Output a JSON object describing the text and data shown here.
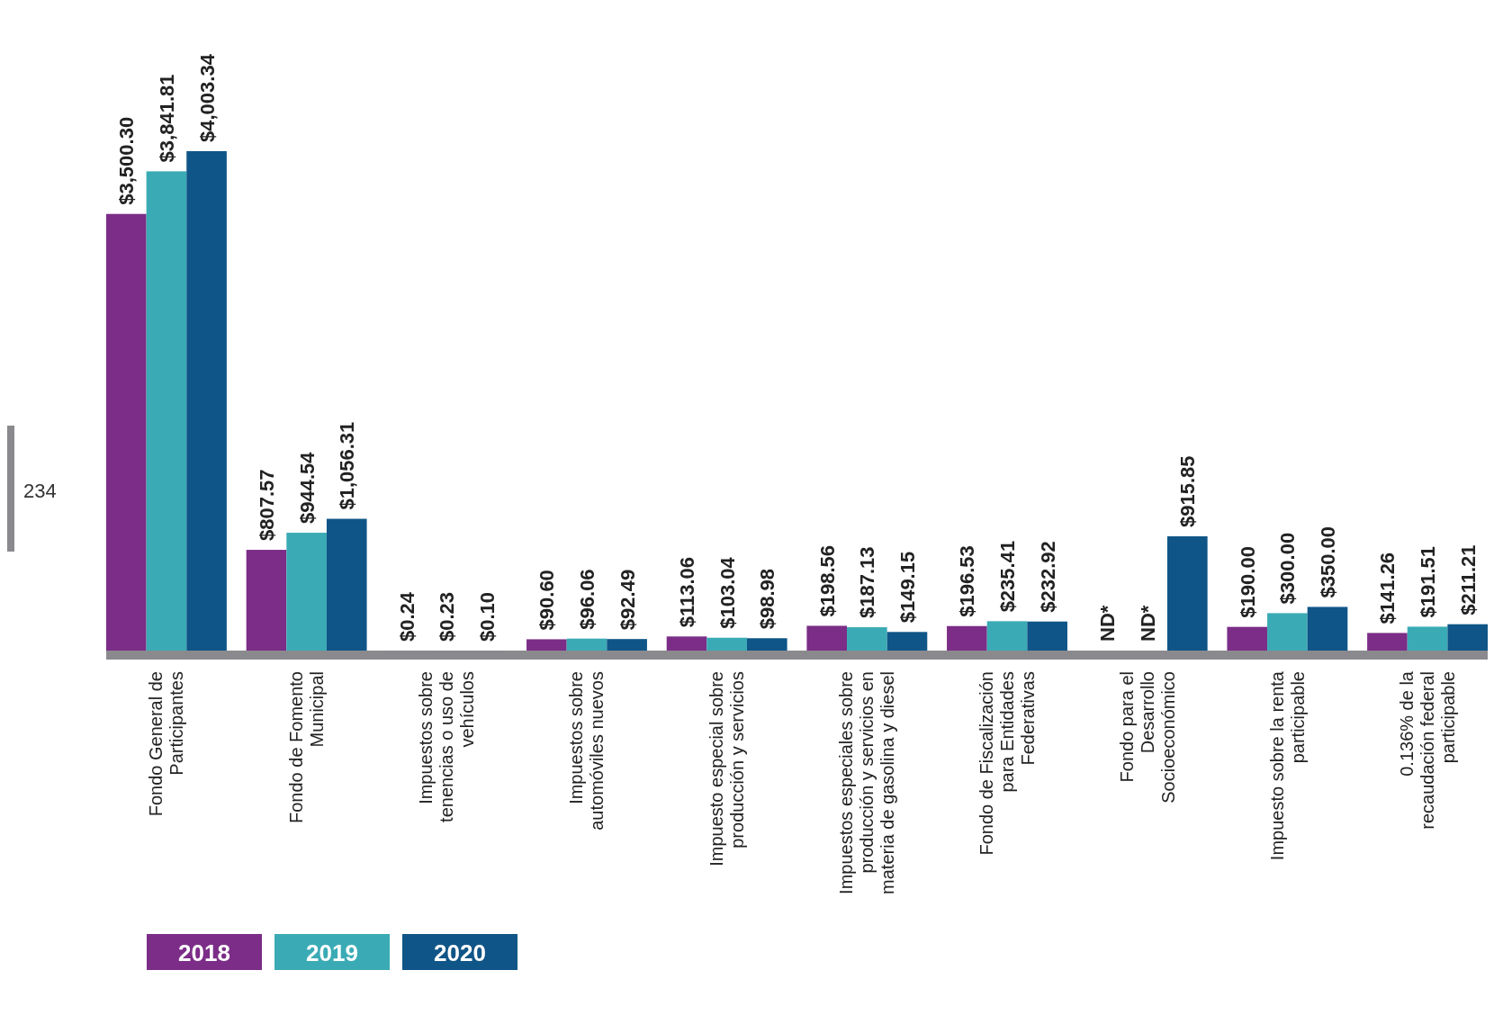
{
  "chart_data": {
    "type": "bar",
    "categories": [
      "Fondo General de\nParticipantes",
      "Fondo de Fomento\nMunicipal",
      "Impuestos sobre\ntenencias o uso de\nvehículos",
      "Impuestos sobre\nautomóviles nuevos",
      "Impuesto especial sobre\nproducción y servicios",
      "Impuestos especiales sobre\nproducción y servicios en\nmateria de gasolina y diesel",
      "Fondo de Fiscalización\npara Entidades\nFederativas",
      "Fondo para el\nDesarrollo\nSocioeconómico",
      "Impuesto sobre la renta\nparticipable",
      "0.136% de la\nrecaudación federal\nparticipable"
    ],
    "series": [
      {
        "name": "2018",
        "color": "#7b2d87",
        "values": [
          3500.3,
          807.57,
          0.24,
          90.6,
          113.06,
          198.56,
          196.53,
          null,
          190.0,
          141.26
        ],
        "value_labels": [
          "$3,500.30",
          "$807.57",
          "$0.24",
          "$90.60",
          "$113.06",
          "$198.56",
          "$196.53",
          "ND*",
          "$190.00",
          "$141.26"
        ]
      },
      {
        "name": "2019",
        "color": "#3aabb5",
        "values": [
          3841.81,
          944.54,
          0.23,
          96.06,
          103.04,
          187.13,
          235.41,
          null,
          300.0,
          191.51
        ],
        "value_labels": [
          "$3,841.81",
          "$944.54",
          "$0.23",
          "$96.06",
          "$103.04",
          "$187.13",
          "$235.41",
          "ND*",
          "$300.00",
          "$191.51"
        ]
      },
      {
        "name": "2020",
        "color": "#0f5587",
        "values": [
          4003.34,
          1056.31,
          0.1,
          92.49,
          98.98,
          149.15,
          232.92,
          915.85,
          350.0,
          211.21
        ],
        "value_labels": [
          "$4,003.34",
          "$1,056.31",
          "$0.10",
          "$92.49",
          "$98.98",
          "$149.15",
          "$232.92",
          "$915.85",
          "$350.00",
          "$211.21"
        ]
      }
    ],
    "legend": "bottom left",
    "annotations": [
      "234"
    ]
  }
}
